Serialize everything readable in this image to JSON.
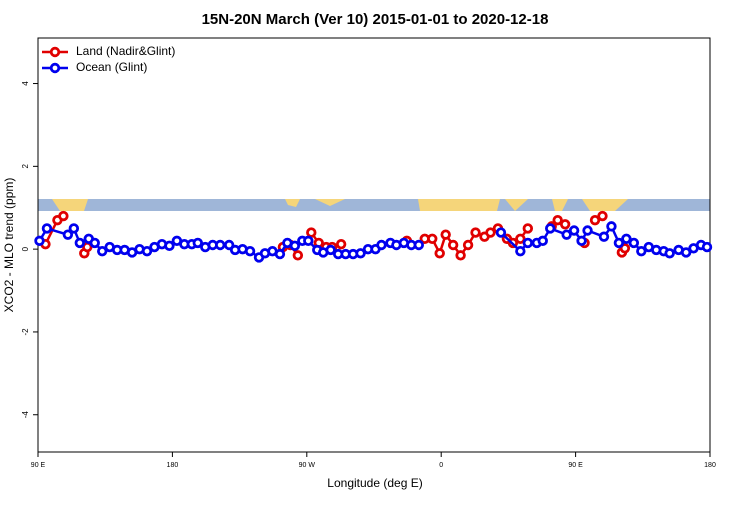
{
  "chart_data": {
    "type": "line",
    "title": "15N-20N March (Ver 10)   2015-01-01 to 2020-12-18",
    "x_label": "Longitude (deg E)",
    "y_label": "XCO2 - MLO trend (ppm)",
    "xlim": [
      90,
      540
    ],
    "xticks": [
      {
        "value": 90,
        "label": "90 E"
      },
      {
        "value": 180,
        "label": "180"
      },
      {
        "value": 270,
        "label": "90 W"
      },
      {
        "value": 360,
        "label": "0"
      },
      {
        "value": 450,
        "label": "90 E"
      },
      {
        "value": 540,
        "label": "180"
      }
    ],
    "ylim": [
      -4.9,
      5.1
    ],
    "yticks": [
      -4,
      -2,
      0,
      2,
      4
    ],
    "legend": "top-left",
    "series": [
      {
        "name": "Land (Nadir&Glint)",
        "color": "#e00000",
        "x": [
          95,
          103,
          107,
          114,
          121,
          123,
          200,
          254,
          259,
          264,
          268,
          273,
          278,
          283,
          287,
          293,
          315,
          337,
          343,
          349,
          354,
          359,
          363,
          368,
          373,
          378,
          383,
          389,
          393,
          398,
          404,
          408,
          413,
          418,
          425,
          434,
          438,
          443,
          450,
          456,
          460,
          463,
          468,
          475,
          481,
          483
        ],
        "values": [
          0.12,
          0.7,
          0.8,
          null,
          -0.1,
          0.05,
          null,
          0.05,
          0.1,
          -0.15,
          null,
          0.4,
          0.15,
          0.05,
          0.05,
          0.12,
          null,
          0.2,
          null,
          0.25,
          0.25,
          -0.1,
          0.35,
          0.1,
          -0.15,
          0.1,
          0.4,
          0.3,
          0.4,
          0.5,
          0.25,
          0.15,
          0.25,
          0.5,
          null,
          0.55,
          0.7,
          0.6,
          null,
          0.15,
          null,
          0.7,
          0.8,
          null,
          -0.08,
          0.02
        ]
      },
      {
        "name": "Ocean (Glint)",
        "color": "#0000ee",
        "x": [
          91,
          96,
          110,
          114,
          118,
          124,
          128,
          133,
          138,
          143,
          148,
          153,
          158,
          163,
          168,
          173,
          178,
          183,
          188,
          193,
          197,
          202,
          207,
          212,
          218,
          222,
          227,
          232,
          238,
          242,
          247,
          252,
          257,
          262,
          267,
          271,
          277,
          281,
          286,
          291,
          296,
          301,
          306,
          311,
          316,
          320,
          326,
          330,
          335,
          340,
          345,
          372,
          400,
          413,
          418,
          424,
          428,
          433,
          444,
          449,
          454,
          458,
          469,
          474,
          479,
          484,
          489,
          494,
          499,
          504,
          509,
          513,
          519,
          524,
          529,
          534,
          538
        ],
        "values": [
          0.2,
          0.5,
          0.35,
          0.5,
          0.15,
          0.25,
          0.15,
          -0.05,
          0.05,
          -0.02,
          -0.02,
          -0.08,
          0.0,
          -0.05,
          0.05,
          0.12,
          0.08,
          0.2,
          0.12,
          0.12,
          0.15,
          0.05,
          0.1,
          0.1,
          0.1,
          -0.02,
          0.0,
          -0.05,
          -0.2,
          -0.1,
          -0.05,
          -0.12,
          0.15,
          0.08,
          0.2,
          0.2,
          -0.02,
          -0.08,
          -0.02,
          -0.12,
          -0.12,
          -0.12,
          -0.1,
          0.0,
          0.0,
          0.1,
          0.15,
          0.1,
          0.15,
          0.1,
          0.1,
          null,
          0.4,
          -0.05,
          0.15,
          0.15,
          0.2,
          0.5,
          0.35,
          0.45,
          0.2,
          0.45,
          0.3,
          0.55,
          0.15,
          0.25,
          0.15,
          -0.05,
          0.05,
          -0.02,
          -0.05,
          -0.1,
          -0.02,
          -0.08,
          0.02,
          0.1,
          0.05
        ]
      }
    ]
  }
}
